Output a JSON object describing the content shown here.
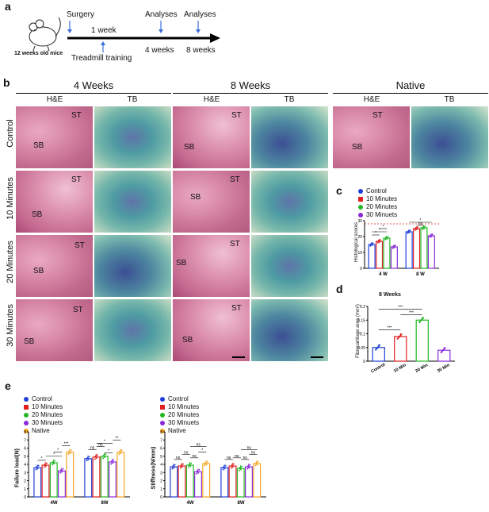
{
  "panel_a": {
    "label": "a",
    "mouse_caption": "12 weeks old mice",
    "surgery": "Surgery",
    "week1": "1 week",
    "treadmill": "Treadmill training",
    "analyses1": "Analyses",
    "analyses2": "Analyses",
    "weeks4": "4 weeks",
    "weeks8": "8 weeks"
  },
  "panel_b": {
    "label": "b",
    "groups": [
      "4 Weeks",
      "8 Weeks",
      "Native"
    ],
    "stains": [
      "H&E",
      "TB"
    ],
    "rows": [
      "Control",
      "10 Minutes",
      "20 Minutes",
      "30 Minutes"
    ],
    "st": "ST",
    "sb": "SB"
  },
  "colors": {
    "control": "#1f3fd8",
    "min10": "#e02020",
    "min20": "#22b722",
    "min30": "#8a2bd8",
    "native": "#f5a623"
  },
  "panel_c": {
    "label": "c",
    "legend": [
      "Control",
      "10 Minutes",
      "20 Minutes",
      "30 Minuets"
    ],
    "ylabel": "Histological scores",
    "sig": [
      "*",
      "*",
      "*",
      "ns",
      "*"
    ]
  },
  "panel_d": {
    "label": "d",
    "title": "8 Weeks",
    "ylabel": "Fibrocartilage area (mm²)",
    "sig": [
      "***",
      "***",
      "***"
    ]
  },
  "panel_e": {
    "label": "e",
    "legend": [
      "Control",
      "10 Minutes",
      "20 Minutes",
      "30 Minuets",
      "Native"
    ],
    "left_ylabel": "Failure load(N)",
    "right_ylabel": "Stiffness(N/mm)"
  },
  "chart_data": [
    {
      "type": "bar",
      "panel": "c",
      "categories": [
        "4 W",
        "8 W"
      ],
      "series": [
        {
          "name": "Control",
          "values": [
            15,
            23
          ]
        },
        {
          "name": "10 Minutes",
          "values": [
            17,
            25
          ]
        },
        {
          "name": "20 Minutes",
          "values": [
            19,
            25.5
          ]
        },
        {
          "name": "30 Minuets",
          "values": [
            13.5,
            20.5
          ]
        }
      ],
      "ylim": [
        0,
        30
      ],
      "yticks": [
        0,
        10,
        20,
        30
      ],
      "ylabel": "Histological scores",
      "reference_line": 28
    },
    {
      "type": "bar",
      "panel": "d",
      "categories": [
        "Control",
        "10 Min",
        "20 Min",
        "30 Min"
      ],
      "values": [
        0.05,
        0.09,
        0.15,
        0.04
      ],
      "ylim": [
        0,
        0.2
      ],
      "yticks": [
        0,
        0.05,
        0.1,
        0.15,
        0.2
      ],
      "title": "8 Weeks",
      "ylabel": "Fibrocartilage area (mm²)"
    },
    {
      "type": "bar",
      "panel": "e-left",
      "categories": [
        "4W",
        "8W"
      ],
      "series": [
        {
          "name": "Control",
          "values": [
            3.6,
            4.7
          ]
        },
        {
          "name": "10 Minutes",
          "values": [
            3.9,
            4.9
          ]
        },
        {
          "name": "20 Minutes",
          "values": [
            4.2,
            5.0
          ]
        },
        {
          "name": "30 Minuets",
          "values": [
            3.2,
            4.3
          ]
        },
        {
          "name": "Native",
          "values": [
            5.5,
            5.5
          ]
        }
      ],
      "ylim": [
        0,
        8
      ],
      "yticks": [
        0,
        1,
        2,
        3,
        4,
        5,
        6,
        7,
        8
      ],
      "ylabel": "Failure load(N)",
      "sig_labels": [
        "*",
        "*",
        "*",
        "***",
        "ns",
        "ns",
        "*",
        "*",
        "**"
      ]
    },
    {
      "type": "bar",
      "panel": "e-right",
      "categories": [
        "4W",
        "8W"
      ],
      "series": [
        {
          "name": "Control",
          "values": [
            3.7,
            3.6
          ]
        },
        {
          "name": "10 Minutes",
          "values": [
            3.8,
            3.8
          ]
        },
        {
          "name": "20 Minutes",
          "values": [
            3.9,
            3.5
          ]
        },
        {
          "name": "30 Minuets",
          "values": [
            3.1,
            3.7
          ]
        },
        {
          "name": "Native",
          "values": [
            4.1,
            4.1
          ]
        }
      ],
      "ylim": [
        0,
        8
      ],
      "yticks": [
        0,
        1,
        2,
        3,
        4,
        5,
        6,
        7,
        8
      ],
      "ylabel": "Stiffness(N/mm)",
      "sig_labels": [
        "ns",
        "ns",
        "ns",
        "*",
        "ns",
        "ns",
        "ns",
        "ns",
        "ns",
        "ns"
      ]
    }
  ]
}
